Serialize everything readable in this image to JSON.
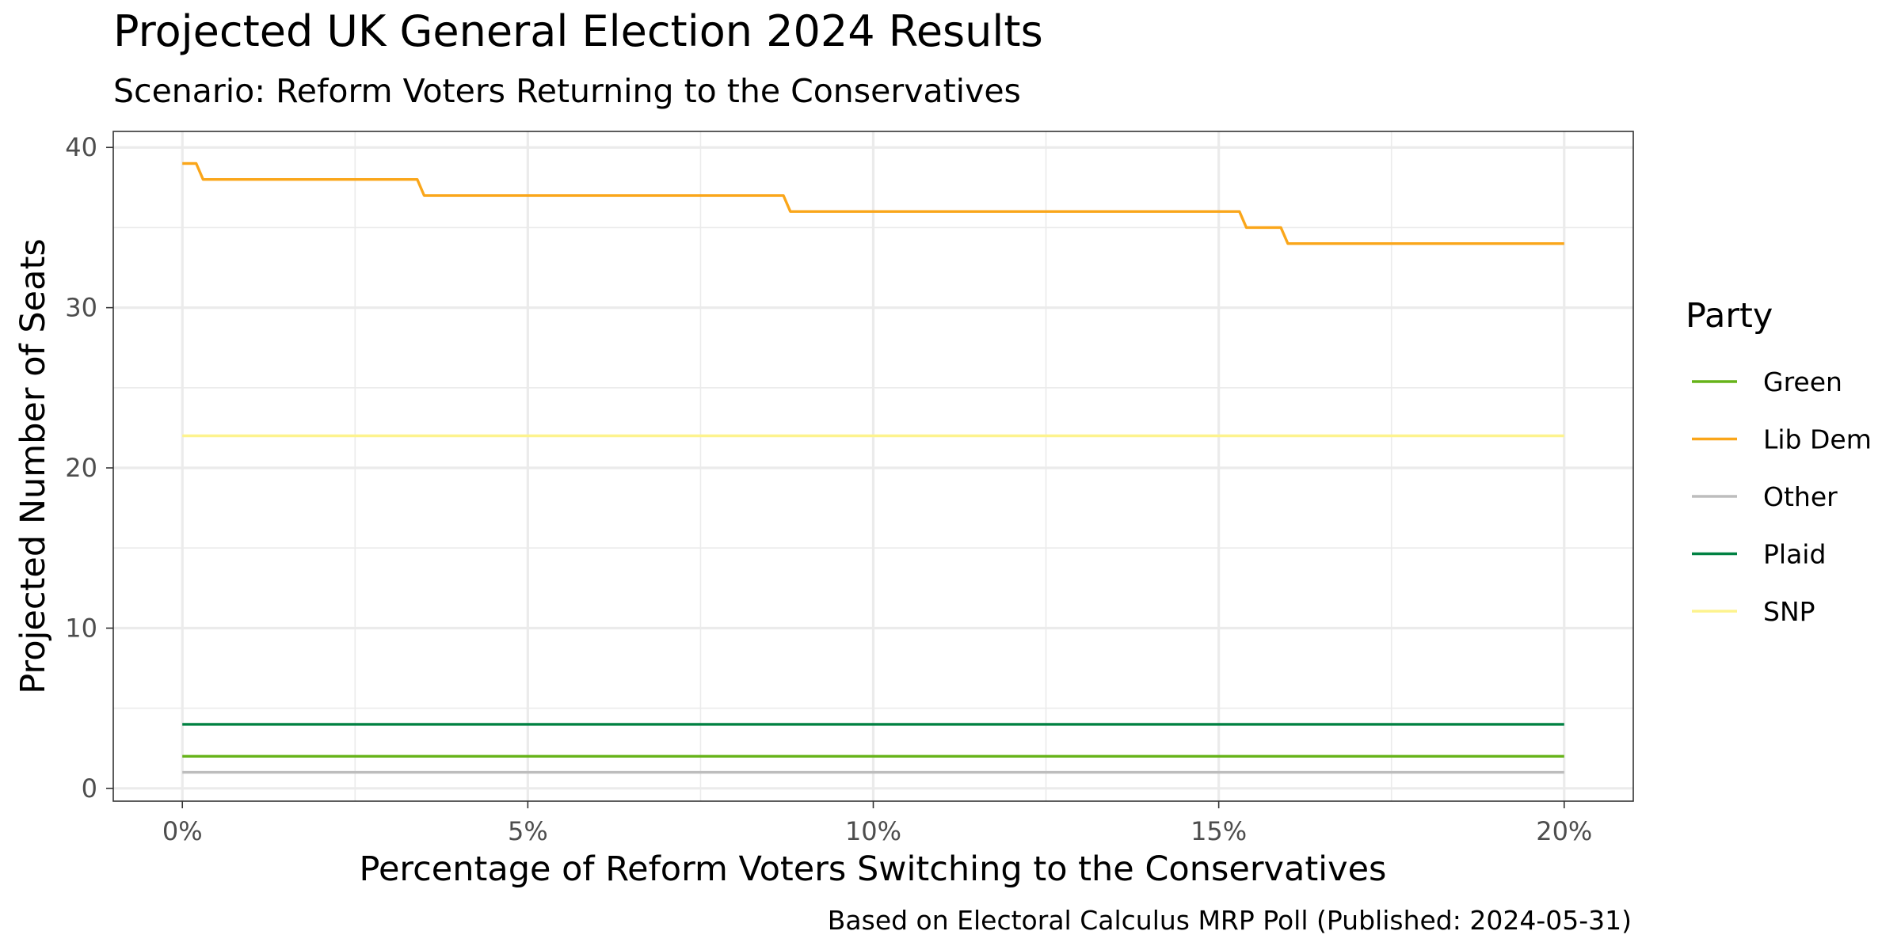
{
  "chart_data": {
    "type": "line",
    "title": "Projected UK General Election 2024 Results",
    "subtitle": "Scenario: Reform Voters Returning to the Conservatives",
    "xlabel": "Percentage of Reform Voters Switching to the Conservatives",
    "ylabel": "Projected Number of Seats",
    "caption": "Based on Electoral Calculus MRP Poll (Published: 2024-05-31)",
    "xlim": [
      -1,
      21
    ],
    "ylim": [
      -0.8,
      41
    ],
    "x_ticks": [
      0,
      5,
      10,
      15,
      20
    ],
    "x_tick_labels": [
      "0%",
      "5%",
      "10%",
      "15%",
      "20%"
    ],
    "y_ticks": [
      0,
      10,
      20,
      30,
      40
    ],
    "y_tick_labels": [
      "0",
      "10",
      "20",
      "30",
      "40"
    ],
    "grid": true,
    "legend": {
      "title": "Party",
      "position": "right"
    },
    "series": [
      {
        "name": "Green",
        "color": "#66b319",
        "x": [
          0,
          20
        ],
        "y": [
          2,
          2
        ]
      },
      {
        "name": "Lib Dem",
        "color": "#faa61a",
        "x": [
          0,
          0.2,
          0.3,
          3.4,
          3.5,
          8.7,
          8.8,
          15.3,
          15.4,
          15.9,
          16.0,
          20
        ],
        "y": [
          39,
          39,
          38,
          38,
          37,
          37,
          36,
          36,
          35,
          35,
          34,
          34
        ]
      },
      {
        "name": "Other",
        "color": "#bdbdbd",
        "x": [
          0,
          20
        ],
        "y": [
          1,
          1
        ]
      },
      {
        "name": "Plaid",
        "color": "#008142",
        "x": [
          0,
          20
        ],
        "y": [
          4,
          4
        ]
      },
      {
        "name": "SNP",
        "color": "#fdf38e",
        "x": [
          0,
          20
        ],
        "y": [
          22,
          22
        ]
      }
    ]
  }
}
